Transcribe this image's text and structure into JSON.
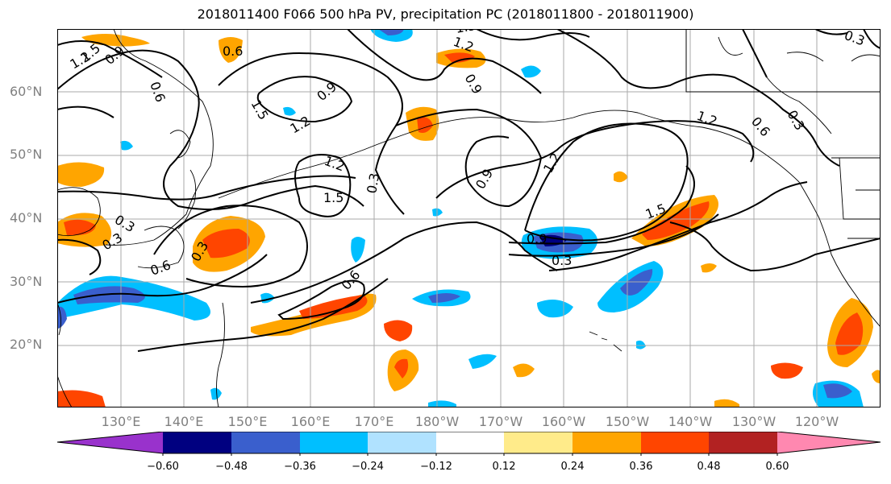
{
  "title": "2018011400 F066 500 hPa PV, precipitation PC (2018011800 - 2018011900)",
  "lat_labels": [
    "60°N",
    "50°N",
    "40°N",
    "30°N",
    "20°N"
  ],
  "lon_labels": [
    "130°E",
    "140°E",
    "150°E",
    "160°E",
    "170°E",
    "180°W",
    "170°W",
    "160°W",
    "150°W",
    "140°W",
    "130°W",
    "120°W"
  ],
  "contour_labels": [
    "1.5",
    "1.2",
    "0.9",
    "0.6",
    "0.6",
    "1.5",
    "1.2",
    "0.9",
    "1.5",
    "1.2",
    "1.2",
    "1.5",
    "0.3",
    "0.9",
    "0.3",
    "0.3",
    "0.6",
    "0.3",
    "0.6",
    "0.9",
    "1.2",
    "0.9",
    "1.5",
    "0.3",
    "1.2",
    "0.6",
    "0.3",
    "0.3"
  ],
  "colorbar": {
    "ticks": [
      "−0.60",
      "−0.48",
      "−0.36",
      "−0.24",
      "−0.12",
      "0.12",
      "0.24",
      "0.36",
      "0.48",
      "0.60"
    ],
    "colors": [
      "#9932cc",
      "#000080",
      "#3a5fcd",
      "#00bfff",
      "#b0e2ff",
      "#ffffff",
      "#ffeb8a",
      "#ffa500",
      "#ff4500",
      "#b22222",
      "#ff88b0"
    ]
  }
}
